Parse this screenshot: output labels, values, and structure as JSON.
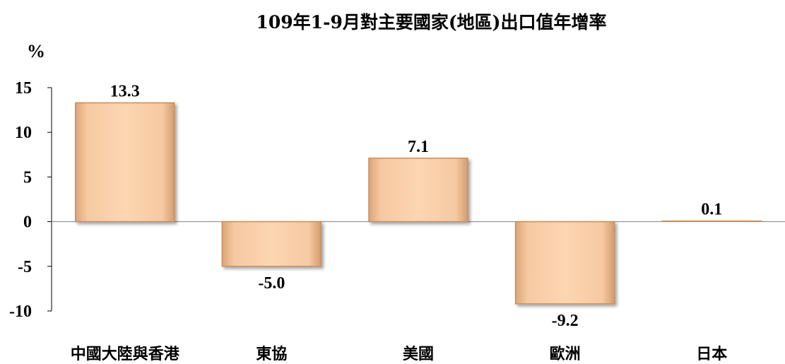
{
  "chart_data": {
    "type": "bar",
    "title": "109年1-9月對主要國家(地區)出口值年增率",
    "unit_label": "%",
    "categories": [
      "中國大陸與香港",
      "東協",
      "美國",
      "歐洲",
      "日本"
    ],
    "values": [
      13.3,
      -5.0,
      7.1,
      -9.2,
      0.1
    ],
    "data_labels": [
      "13.3",
      "-5.0",
      "7.1",
      "-9.2",
      "0.1"
    ],
    "ylim": [
      -10,
      15
    ],
    "yticks": [
      15,
      10,
      5,
      0,
      -5,
      -10
    ],
    "bar_color": "#f5c49a",
    "grid": false,
    "legend": "none"
  }
}
